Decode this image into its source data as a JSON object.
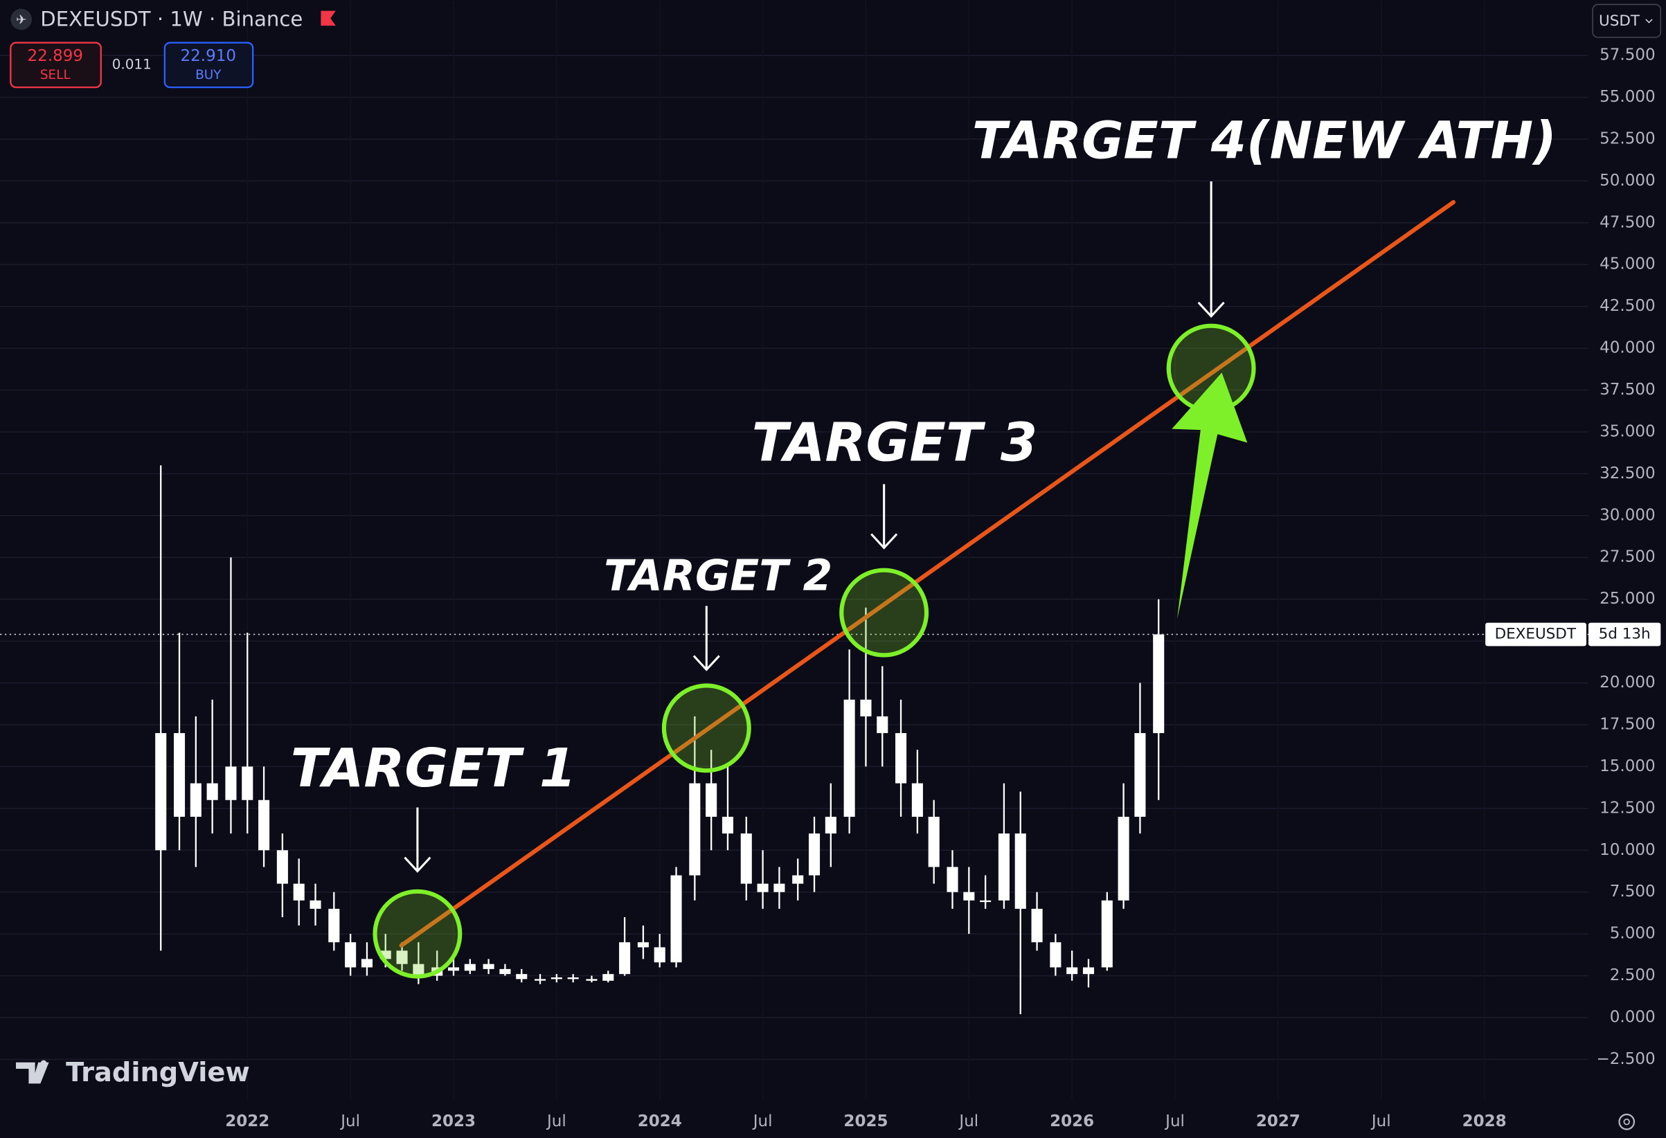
{
  "chart_data": {
    "type": "candlestick",
    "title": "DEXEUSDT · 1W · Binance",
    "color": "#ffffff",
    "grid": true,
    "x": [
      2021.58,
      2021.67,
      2021.75,
      2021.83,
      2021.92,
      2022.0,
      2022.08,
      2022.17,
      2022.25,
      2022.33,
      2022.42,
      2022.5,
      2022.58,
      2022.67,
      2022.75,
      2022.83,
      2022.92,
      2023.0,
      2023.08,
      2023.17,
      2023.25,
      2023.33,
      2023.42,
      2023.5,
      2023.58,
      2023.67,
      2023.75,
      2023.83,
      2023.92,
      2024.0,
      2024.08,
      2024.17,
      2024.25,
      2024.33,
      2024.42,
      2024.5,
      2024.58,
      2024.67,
      2024.75,
      2024.83,
      2024.92,
      2025.0,
      2025.08,
      2025.17,
      2025.25,
      2025.33,
      2025.42,
      2025.5,
      2025.58,
      2025.67,
      2025.75,
      2025.83,
      2025.92,
      2026.0,
      2026.08,
      2026.17,
      2026.25,
      2026.33,
      2026.42
    ],
    "open": [
      10,
      17,
      12,
      14,
      13,
      15,
      13,
      10,
      8,
      7,
      6.5,
      4.5,
      3,
      3.5,
      4,
      3.2,
      2.5,
      3,
      2.8,
      3.2,
      2.9,
      2.6,
      2.3,
      2.3,
      2.4,
      2.3,
      2.2,
      2.6,
      4.5,
      4.2,
      3.3,
      8.5,
      14,
      12,
      11,
      8,
      7.5,
      8,
      8.5,
      11,
      12,
      19,
      18,
      17,
      14,
      12,
      9,
      7.5,
      7,
      7,
      11,
      6.5,
      4.5,
      3,
      2.6,
      3,
      7,
      12,
      17
    ],
    "high": [
      33,
      23,
      18,
      19,
      27.5,
      23,
      15,
      11,
      9.5,
      8,
      7.5,
      5,
      4.5,
      5,
      4.5,
      4.5,
      4,
      3.5,
      3.5,
      3.5,
      3.2,
      2.9,
      2.6,
      2.6,
      2.6,
      2.5,
      2.8,
      6,
      5.5,
      5,
      9,
      18,
      16,
      15,
      12,
      10,
      9,
      9.5,
      12,
      14,
      22,
      24.5,
      21,
      19,
      16,
      13,
      10,
      9,
      8.5,
      14,
      13.5,
      7.5,
      5,
      4,
      3.5,
      7.5,
      14,
      20,
      25
    ],
    "low": [
      4,
      10,
      9,
      11,
      11,
      11,
      9,
      6,
      5.5,
      5.5,
      4,
      2.5,
      2.5,
      3,
      2.8,
      2,
      2.2,
      2.5,
      2.6,
      2.6,
      2.5,
      2.1,
      2.0,
      2.1,
      2.1,
      2.1,
      2.1,
      2.5,
      3.5,
      3,
      3,
      7,
      10,
      10,
      7,
      6.5,
      6.5,
      7,
      7.5,
      9,
      11,
      15,
      15,
      12,
      11,
      8,
      6.5,
      5,
      6.5,
      6.5,
      0.2,
      4,
      2.5,
      2.2,
      1.8,
      2.8,
      6.5,
      11,
      13
    ],
    "close": [
      17,
      12,
      14,
      13,
      15,
      13,
      10,
      8,
      7,
      6.5,
      4.5,
      3,
      3.5,
      4,
      3.2,
      2.5,
      3,
      2.8,
      3.2,
      2.9,
      2.6,
      2.3,
      2.3,
      2.4,
      2.3,
      2.2,
      2.6,
      4.5,
      4.2,
      3.3,
      8.5,
      14,
      12,
      11,
      8,
      7.5,
      8,
      8.5,
      11,
      12,
      19,
      18,
      17,
      14,
      12,
      9,
      7.5,
      7,
      7,
      11,
      6.5,
      4.5,
      3,
      2.6,
      3,
      7,
      12,
      17,
      22.9
    ],
    "xlim": [
      2020.8,
      2028.505
    ],
    "xticks": [
      2022,
      {
        "value": 2022.5,
        "label": "Jul"
      },
      2023,
      {
        "value": 2023.5,
        "label": "Jul"
      },
      2024,
      {
        "value": 2024.5,
        "label": "Jul"
      },
      2025,
      {
        "value": 2025.5,
        "label": "Jul"
      },
      2026,
      {
        "value": 2026.5,
        "label": "Jul"
      },
      2027,
      {
        "value": 2027.5,
        "label": "Jul"
      },
      2028
    ],
    "ylim": [
      -4.9,
      60.8
    ],
    "yticks": [
      {
        "value": -2.5,
        "label": "−2.500"
      },
      {
        "value": 0,
        "label": "0.000"
      },
      {
        "value": 2.5,
        "label": "2.500"
      },
      {
        "value": 5,
        "label": "5.000"
      },
      {
        "value": 7.5,
        "label": "7.500"
      },
      {
        "value": 10,
        "label": "10.000"
      },
      {
        "value": 12.5,
        "label": "12.500"
      },
      {
        "value": 15,
        "label": "15.000"
      },
      {
        "value": 17.5,
        "label": "17.500"
      },
      {
        "value": 20,
        "label": "20.000"
      },
      {
        "value": 22.5,
        "label": "22.500"
      },
      {
        "value": 25,
        "label": "25.000"
      },
      {
        "value": 27.5,
        "label": "27.500"
      },
      {
        "value": 30,
        "label": "30.000"
      },
      {
        "value": 32.5,
        "label": "32.500"
      },
      {
        "value": 35,
        "label": "35.000"
      },
      {
        "value": 37.5,
        "label": "37.500"
      },
      {
        "value": 40,
        "label": "40.000"
      },
      {
        "value": 42.5,
        "label": "42.500"
      },
      {
        "value": 45,
        "label": "45.000"
      },
      {
        "value": 47.5,
        "label": "47.500"
      },
      {
        "value": 50,
        "label": "50.000"
      },
      {
        "value": 52.5,
        "label": "52.500"
      },
      {
        "value": 55,
        "label": "55.000"
      },
      {
        "value": 57.5,
        "label": "57.500"
      }
    ],
    "trendline": {
      "color": "#e8561a",
      "x": [
        2022.747,
        2027.85
      ],
      "y": [
        4.31,
        48.73
      ]
    },
    "annotations": [
      {
        "label": "TARGET 1",
        "x": 2022.825,
        "y": 5.0
      },
      {
        "label": "TARGET 2",
        "x": 2024.227,
        "y": 17.3
      },
      {
        "label": "TARGET 3",
        "x": 2025.088,
        "y": 24.2
      },
      {
        "label": "TARGET 4(NEW ATH)",
        "x": 2026.675,
        "y": 38.8
      }
    ]
  },
  "header": {
    "sell_price": "22.899",
    "sell_label": "SELL",
    "spread": "0.011",
    "buy_price": "22.910",
    "buy_label": "BUY",
    "currency": "USDT"
  },
  "price_label": {
    "symbol": "DEXEUSDT",
    "countdown": "5d 13h"
  },
  "brand": "TradingView"
}
